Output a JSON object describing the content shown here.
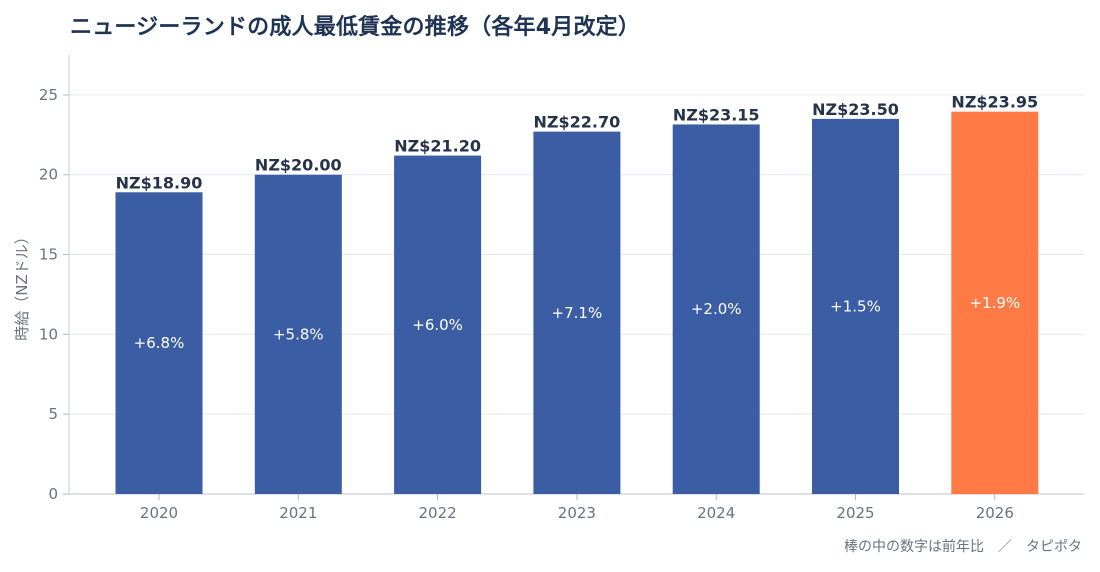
{
  "chart_data": {
    "type": "bar",
    "title": "ニュージーランドの成人最低賃金の推移（各年4月改定）",
    "categories": [
      "2020",
      "2021",
      "2022",
      "2023",
      "2024",
      "2025",
      "2026"
    ],
    "values": [
      18.9,
      20.0,
      21.2,
      22.7,
      23.15,
      23.5,
      23.95
    ],
    "value_labels": [
      "NZ$18.90",
      "NZ$20.00",
      "NZ$21.20",
      "NZ$22.70",
      "NZ$23.15",
      "NZ$23.50",
      "NZ$23.95"
    ],
    "growth_labels": [
      "+6.8%",
      "+5.8%",
      "+6.0%",
      "+7.1%",
      "+2.0%",
      "+1.5%",
      "+1.9%"
    ],
    "xlabel": "",
    "ylabel": "時給（NZドル）",
    "ylim": [
      0,
      27.5
    ],
    "yticks": [
      0,
      5,
      10,
      15,
      20,
      25
    ],
    "grid": true,
    "bar_color": "#3a5da4",
    "highlight_color": "#ff7a45",
    "highlight_index": 6
  },
  "footnote": "棒の中の数字は前年比　／　タピポタ"
}
